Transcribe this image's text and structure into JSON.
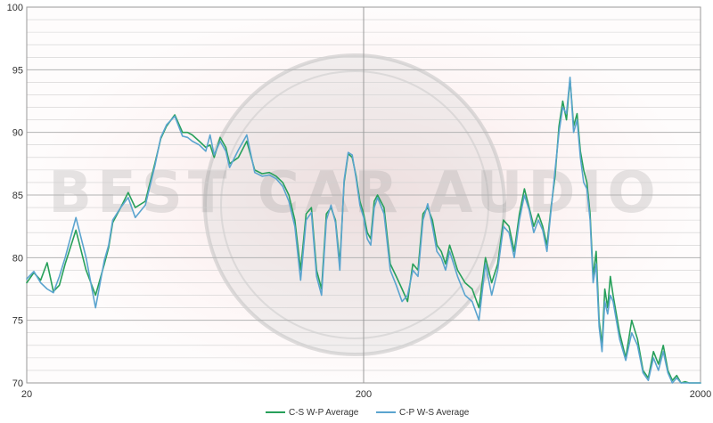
{
  "chart_data": {
    "type": "line",
    "title": "",
    "xlabel": "",
    "ylabel": "",
    "x_scale": "log",
    "xlim": [
      20,
      2000
    ],
    "ylim": [
      70,
      100
    ],
    "x_ticks": [
      20,
      200,
      2000
    ],
    "x_tick_labels": [
      "20",
      "200",
      "2000"
    ],
    "y_ticks": [
      70,
      75,
      80,
      85,
      90,
      95,
      100
    ],
    "y_tick_labels": [
      "70",
      "75",
      "80",
      "85",
      "90",
      "95",
      "100"
    ],
    "grid": true,
    "minor_grid_y": 1,
    "legend_position": "bottom",
    "background_color": "#ffffff",
    "grid_color": "#b3b3b3",
    "minor_grid_color": "#d0d0d0",
    "watermark_text": "BEST CAR AUDIO",
    "series": [
      {
        "name": "C-S W-P Average",
        "color": "#27a05a",
        "x": [
          20,
          21,
          22,
          23,
          24,
          25,
          26,
          28,
          30,
          32,
          34,
          35,
          36,
          38,
          40,
          42,
          45,
          48,
          50,
          52,
          55,
          58,
          60,
          62,
          65,
          68,
          70,
          72,
          75,
          78,
          80,
          85,
          90,
          95,
          100,
          105,
          110,
          115,
          120,
          125,
          130,
          135,
          140,
          145,
          150,
          155,
          160,
          165,
          170,
          175,
          180,
          185,
          190,
          195,
          200,
          205,
          210,
          215,
          220,
          230,
          240,
          250,
          260,
          270,
          280,
          290,
          300,
          310,
          320,
          330,
          340,
          350,
          360,
          370,
          380,
          400,
          420,
          440,
          460,
          480,
          500,
          520,
          540,
          560,
          580,
          600,
          620,
          640,
          660,
          680,
          700,
          720,
          740,
          760,
          780,
          800,
          820,
          840,
          860,
          880,
          900,
          920,
          940,
          960,
          980,
          1000,
          1020,
          1040,
          1060,
          1080,
          1100,
          1150,
          1200,
          1250,
          1300,
          1350,
          1400,
          1450,
          1500,
          1550,
          1600,
          1650,
          1700,
          1750,
          1800,
          1850,
          1900,
          1950,
          2000
        ],
        "y": [
          78.0,
          78.8,
          78.2,
          79.6,
          77.3,
          77.8,
          79.5,
          82.2,
          79.0,
          77.0,
          79.5,
          80.8,
          82.8,
          84.0,
          85.2,
          84.0,
          84.5,
          87.5,
          89.5,
          90.5,
          91.4,
          90.0,
          90.0,
          89.8,
          89.3,
          88.8,
          89.0,
          88.0,
          89.6,
          88.8,
          87.5,
          88.0,
          89.3,
          87.0,
          86.7,
          86.8,
          86.5,
          86.0,
          85.0,
          83.0,
          79.0,
          83.5,
          84.0,
          79.0,
          77.5,
          83.5,
          84.0,
          83.0,
          79.5,
          86.0,
          88.3,
          88.0,
          86.5,
          84.5,
          83.5,
          82.0,
          81.5,
          84.5,
          85.0,
          84.0,
          79.5,
          78.5,
          77.5,
          76.5,
          79.5,
          79.0,
          83.5,
          84.0,
          83.0,
          81.0,
          80.5,
          79.5,
          81.0,
          80.0,
          79.0,
          78.0,
          77.5,
          76.0,
          80.0,
          78.0,
          79.5,
          83.0,
          82.5,
          80.5,
          83.5,
          85.5,
          84.0,
          82.5,
          83.5,
          82.5,
          81.0,
          84.0,
          86.5,
          90.5,
          92.5,
          91.0,
          94.3,
          90.5,
          91.5,
          88.5,
          87.0,
          86.0,
          83.5,
          78.5,
          80.5,
          75.0,
          73.0,
          77.5,
          76.0,
          78.5,
          77.0,
          74.0,
          72.0,
          75.0,
          73.5,
          71.0,
          70.4,
          72.5,
          71.5,
          73.0,
          71.0,
          70.2,
          70.6,
          70.0,
          70.1,
          70.0,
          70.0,
          70.0,
          70.0
        ]
      },
      {
        "name": "C-P W-S Average",
        "color": "#5ba4cf",
        "x": [
          20,
          21,
          22,
          23,
          24,
          25,
          26,
          28,
          30,
          32,
          34,
          35,
          36,
          38,
          40,
          42,
          45,
          48,
          50,
          52,
          55,
          58,
          60,
          62,
          65,
          68,
          70,
          72,
          75,
          78,
          80,
          85,
          90,
          95,
          100,
          105,
          110,
          115,
          120,
          125,
          130,
          135,
          140,
          145,
          150,
          155,
          160,
          165,
          170,
          175,
          180,
          185,
          190,
          195,
          200,
          205,
          210,
          215,
          220,
          230,
          240,
          250,
          260,
          270,
          280,
          290,
          300,
          310,
          320,
          330,
          340,
          350,
          360,
          370,
          380,
          400,
          420,
          440,
          460,
          480,
          500,
          520,
          540,
          560,
          580,
          600,
          620,
          640,
          660,
          680,
          700,
          720,
          740,
          760,
          780,
          800,
          820,
          840,
          860,
          880,
          900,
          920,
          940,
          960,
          980,
          1000,
          1020,
          1040,
          1060,
          1080,
          1100,
          1150,
          1200,
          1250,
          1300,
          1350,
          1400,
          1450,
          1500,
          1550,
          1600,
          1650,
          1700,
          1750,
          1800,
          1850,
          1900,
          1950,
          2000
        ],
        "y": [
          78.3,
          78.9,
          78.0,
          77.5,
          77.2,
          78.5,
          80.0,
          83.2,
          80.0,
          76.0,
          79.8,
          81.0,
          83.0,
          84.0,
          84.8,
          83.2,
          84.2,
          87.3,
          89.6,
          90.6,
          91.3,
          89.7,
          89.6,
          89.3,
          89.0,
          88.5,
          89.8,
          88.2,
          89.3,
          88.5,
          87.2,
          88.6,
          89.8,
          86.8,
          86.5,
          86.6,
          86.3,
          85.7,
          84.5,
          82.5,
          78.2,
          83.0,
          83.6,
          78.5,
          77.0,
          83.0,
          84.2,
          82.8,
          79.0,
          86.2,
          88.4,
          88.2,
          86.3,
          84.2,
          83.2,
          81.5,
          81.0,
          84.0,
          84.8,
          83.5,
          79.0,
          77.8,
          76.5,
          77.0,
          79.0,
          78.5,
          83.0,
          84.3,
          82.5,
          80.5,
          80.0,
          79.0,
          80.5,
          79.5,
          78.5,
          77.0,
          76.5,
          75.0,
          79.5,
          77.0,
          79.0,
          82.5,
          82.0,
          80.0,
          83.0,
          85.0,
          83.8,
          82.0,
          83.0,
          82.2,
          80.5,
          83.8,
          87.0,
          90.0,
          92.0,
          91.5,
          94.4,
          90.0,
          91.0,
          88.0,
          86.0,
          85.5,
          83.0,
          78.0,
          79.5,
          74.5,
          72.5,
          76.5,
          75.5,
          77.0,
          76.5,
          73.5,
          71.8,
          74.0,
          73.0,
          70.8,
          70.2,
          72.0,
          71.0,
          72.5,
          70.8,
          70.0,
          70.4,
          70.0,
          70.0,
          70.0,
          70.0,
          70.0,
          70.0
        ]
      }
    ]
  }
}
